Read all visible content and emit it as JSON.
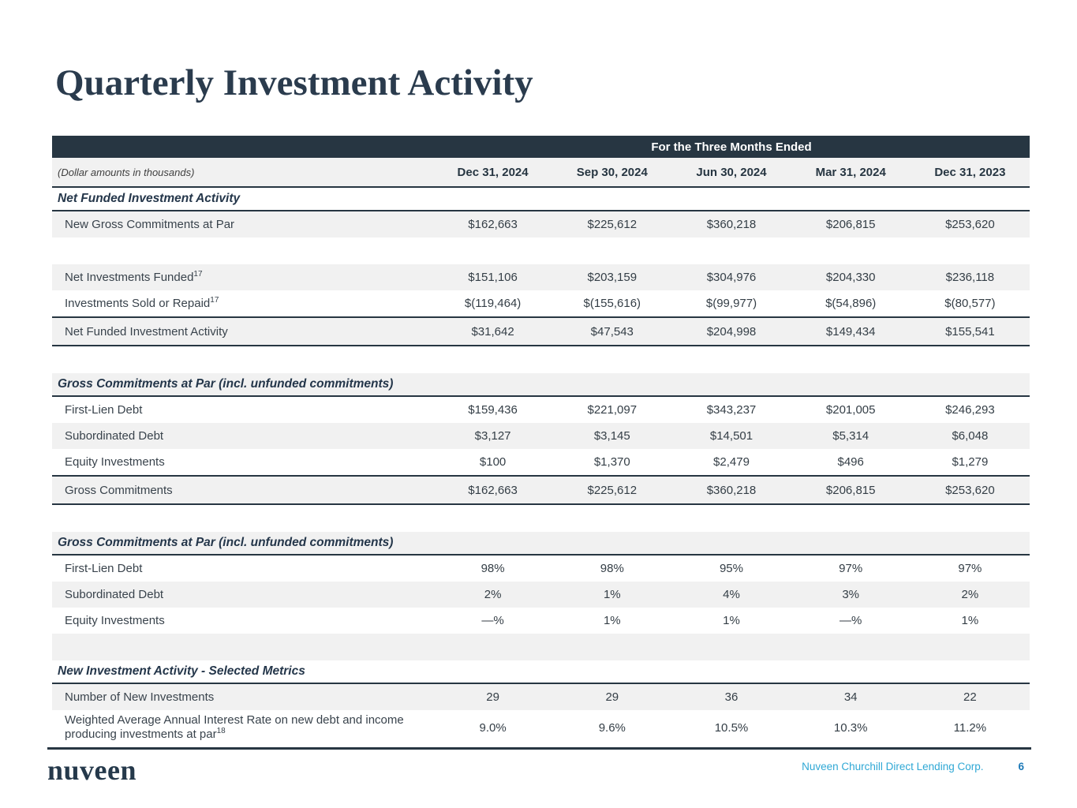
{
  "slide": {
    "title": "Quarterly Investment Activity"
  },
  "table": {
    "banner": "For the Three Months Ended",
    "note": "(Dollar amounts in thousands)",
    "columns": [
      "Dec 31, 2024",
      "Sep 30, 2024",
      "Jun 30, 2024",
      "Mar 31, 2024",
      "Dec 31, 2023"
    ],
    "rows": [
      {
        "type": "section",
        "label": "Net Funded Investment Activity",
        "shade": false
      },
      {
        "type": "data",
        "label": "New Gross Commitments at Par",
        "sup": "",
        "shade": true,
        "values": [
          "$162,663",
          "$225,612",
          "$360,218",
          "$206,815",
          "$253,620"
        ]
      },
      {
        "type": "spacer",
        "shade": false
      },
      {
        "type": "data",
        "label": "Net Investments Funded",
        "sup": "17",
        "shade": true,
        "values": [
          "$151,106",
          "$203,159",
          "$304,976",
          "$204,330",
          "$236,118"
        ]
      },
      {
        "type": "data",
        "label": "Investments Sold or Repaid",
        "sup": "17",
        "shade": false,
        "values": [
          "$(119,464)",
          "$(155,616)",
          "$(99,977)",
          "$(54,896)",
          "$(80,577)"
        ]
      },
      {
        "type": "total",
        "label": "Net Funded Investment Activity",
        "sup": "",
        "shade": true,
        "values": [
          "$31,642",
          "$47,543",
          "$204,998",
          "$149,434",
          "$155,541"
        ]
      },
      {
        "type": "spacer",
        "shade": false
      },
      {
        "type": "section",
        "label": "Gross Commitments at Par (incl. unfunded commitments)",
        "shade": true
      },
      {
        "type": "data",
        "label": "First-Lien Debt",
        "sup": "",
        "shade": false,
        "values": [
          "$159,436",
          "$221,097",
          "$343,237",
          "$201,005",
          "$246,293"
        ]
      },
      {
        "type": "data",
        "label": "Subordinated Debt",
        "sup": "",
        "shade": true,
        "values": [
          "$3,127",
          "$3,145",
          "$14,501",
          "$5,314",
          "$6,048"
        ]
      },
      {
        "type": "data",
        "label": "Equity Investments",
        "sup": "",
        "shade": false,
        "values": [
          "$100",
          "$1,370",
          "$2,479",
          "$496",
          "$1,279"
        ]
      },
      {
        "type": "total",
        "label": "Gross Commitments",
        "sup": "",
        "shade": true,
        "values": [
          "$162,663",
          "$225,612",
          "$360,218",
          "$206,815",
          "$253,620"
        ]
      },
      {
        "type": "spacer",
        "shade": false
      },
      {
        "type": "section",
        "label": "Gross Commitments at Par (incl. unfunded commitments)",
        "shade": true
      },
      {
        "type": "data",
        "label": "First-Lien Debt",
        "sup": "",
        "shade": false,
        "values": [
          "98%",
          "98%",
          "95%",
          "97%",
          "97%"
        ]
      },
      {
        "type": "data",
        "label": "Subordinated Debt",
        "sup": "",
        "shade": true,
        "values": [
          "2%",
          "1%",
          "4%",
          "3%",
          "2%"
        ]
      },
      {
        "type": "data",
        "label": "Equity Investments",
        "sup": "",
        "shade": false,
        "values": [
          "—%",
          "1%",
          "1%",
          "—%",
          "1%"
        ]
      },
      {
        "type": "spacer",
        "shade": true
      },
      {
        "type": "section",
        "label": "New Investment Activity - Selected Metrics",
        "shade": false
      },
      {
        "type": "data",
        "label": "Number of New Investments",
        "sup": "",
        "shade": true,
        "values": [
          "29",
          "29",
          "36",
          "34",
          "22"
        ]
      },
      {
        "type": "data",
        "label": "Weighted Average Annual Interest Rate on new debt and income producing investments at par",
        "sup": "18",
        "shade": false,
        "wrap": true,
        "values": [
          "9.0%",
          "9.6%",
          "10.5%",
          "10.3%",
          "11.2%"
        ]
      }
    ]
  },
  "footer": {
    "logo": "nuveen",
    "company": "Nuveen Churchill Direct Lending Corp.",
    "page": "6"
  },
  "colors": {
    "header_bar": "#273642",
    "row_shade": "#F1F1F1",
    "title_navy": "#2A3B4D",
    "footer_blue": "#2FA8D5",
    "page_blue": "#1E7AB8"
  }
}
